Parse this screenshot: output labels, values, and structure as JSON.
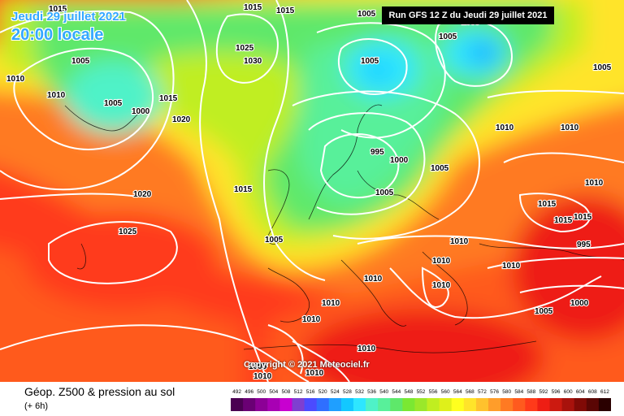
{
  "header": {
    "date_line": "Jeudi 29 juillet 2021",
    "time_line": "20:00 locale",
    "run_info": "Run GFS 12 Z du Jeudi 29 juillet 2021"
  },
  "copyright": "Copyright © 2021 Meteociel.fr",
  "footer": {
    "title": "Géop. Z500 & pression au sol",
    "subtitle": "(+ 6h)"
  },
  "scale": {
    "labels": [
      "492",
      "496",
      "500",
      "504",
      "508",
      "512",
      "516",
      "520",
      "524",
      "528",
      "532",
      "536",
      "540",
      "544",
      "548",
      "552",
      "556",
      "560",
      "564",
      "568",
      "572",
      "576",
      "580",
      "584",
      "588",
      "592",
      "596",
      "600",
      "604",
      "608",
      "612"
    ],
    "colors": [
      "#4b0052",
      "#6a0074",
      "#8c0096",
      "#a800b4",
      "#c800d0",
      "#7f3fd0",
      "#4b4bff",
      "#2f6fff",
      "#1f9fff",
      "#13c8ff",
      "#2ee6ff",
      "#4ff2c8",
      "#58f09a",
      "#5ee86a",
      "#7ae832",
      "#9ae82a",
      "#c0ee20",
      "#dff01a",
      "#ffff1f",
      "#ffe42a",
      "#ffc22d",
      "#ff9d2a",
      "#ff7a22",
      "#ff5a1e",
      "#ff3a1a",
      "#ee1e14",
      "#cc1a10",
      "#a8120c",
      "#800a06",
      "#5a0604",
      "#2a0000"
    ]
  },
  "pressure_labels": [
    {
      "text": "1015"
    },
    {
      "text": "1015"
    },
    {
      "text": "1015"
    },
    {
      "text": "1005"
    },
    {
      "text": "1005"
    },
    {
      "text": "1005"
    },
    {
      "text": "1010"
    },
    {
      "text": "1010"
    },
    {
      "text": "1005"
    },
    {
      "text": "1000"
    },
    {
      "text": "1015"
    },
    {
      "text": "1020"
    },
    {
      "text": "1025"
    },
    {
      "text": "1030"
    },
    {
      "text": "1005"
    },
    {
      "text": "1005"
    },
    {
      "text": "1005"
    },
    {
      "text": "995"
    },
    {
      "text": "1000"
    },
    {
      "text": "1005"
    },
    {
      "text": "1005"
    },
    {
      "text": "1015"
    },
    {
      "text": "1020"
    },
    {
      "text": "1025"
    },
    {
      "text": "1005"
    },
    {
      "text": "1010"
    },
    {
      "text": "1010"
    },
    {
      "text": "1010"
    },
    {
      "text": "1010"
    },
    {
      "text": "1010"
    },
    {
      "text": "1010"
    },
    {
      "text": "1015"
    },
    {
      "text": "1015"
    },
    {
      "text": "1015"
    },
    {
      "text": "1010"
    },
    {
      "text": "995"
    },
    {
      "text": "1010"
    },
    {
      "text": "1005"
    },
    {
      "text": "1000"
    },
    {
      "text": "1010"
    },
    {
      "text": "1010"
    },
    {
      "text": "1010"
    },
    {
      "text": "1010"
    },
    {
      "text": "1005"
    },
    {
      "text": "1010"
    }
  ]
}
